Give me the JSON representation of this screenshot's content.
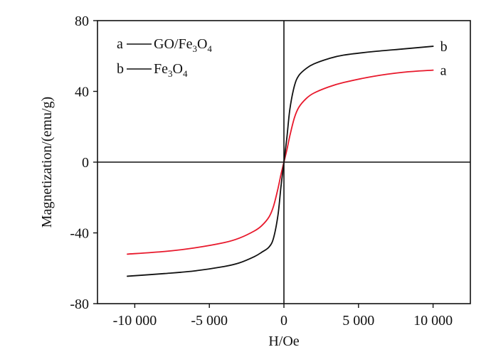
{
  "chart_data": {
    "type": "line",
    "xlabel": "H/Oe",
    "ylabel": "Magnetization/(emu/g)",
    "xlim": [
      -12500,
      12500
    ],
    "ylim": [
      -80,
      80
    ],
    "x_ticks": [
      -10000,
      -5000,
      0,
      5000,
      10000
    ],
    "x_tick_labels": [
      "-10 000",
      "-5 000",
      "0",
      "5 000",
      "10 000"
    ],
    "y_ticks": [
      -80,
      -40,
      0,
      40,
      80
    ],
    "y_tick_labels": [
      "-80",
      "-40",
      "0",
      "40",
      "80"
    ],
    "grid": false,
    "legend_position": "top-left",
    "legend": [
      {
        "key": "a",
        "label": "GO/Fe3O4"
      },
      {
        "key": "b",
        "label": "Fe3O4"
      }
    ],
    "series": [
      {
        "name": "a",
        "color": "#e8192c",
        "end_label": "a",
        "x": [
          -10500,
          -8000,
          -6000,
          -4000,
          -3000,
          -2000,
          -1500,
          -1000,
          -700,
          -400,
          -200,
          0,
          200,
          400,
          700,
          1000,
          1500,
          2000,
          3000,
          4000,
          6000,
          8000,
          10000
        ],
        "y": [
          -52,
          -50.5,
          -48.5,
          -45.5,
          -43,
          -39,
          -36,
          -31,
          -25,
          -15,
          -7,
          0,
          7,
          15,
          25,
          31,
          36,
          39,
          42.5,
          45,
          48.5,
          50.8,
          52
        ]
      },
      {
        "name": "b",
        "color": "#111111",
        "end_label": "b",
        "x": [
          -10500,
          -8000,
          -6000,
          -4000,
          -3000,
          -2000,
          -1500,
          -1000,
          -700,
          -400,
          -200,
          0,
          200,
          400,
          700,
          1000,
          1500,
          2000,
          3000,
          4000,
          6000,
          8000,
          10000
        ],
        "y": [
          -64.5,
          -63,
          -61.5,
          -59,
          -57,
          -53.5,
          -51,
          -48,
          -43,
          -30,
          -14,
          0,
          14,
          30,
          43,
          49,
          53,
          55.5,
          58.5,
          60.5,
          62.5,
          64,
          65.5
        ]
      }
    ]
  }
}
